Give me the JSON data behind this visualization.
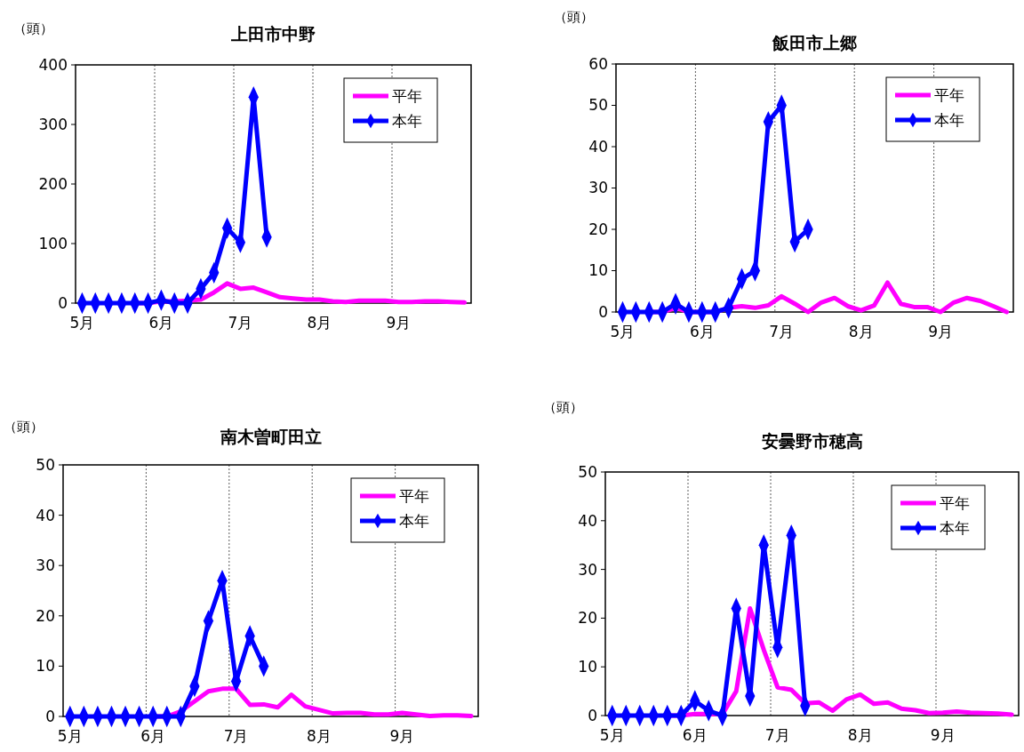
{
  "chart_data": [
    {
      "type": "line",
      "title": "上田市中野",
      "ylabel": "（頭）",
      "categories": [
        "5月",
        null,
        null,
        null,
        null,
        null,
        "6月",
        null,
        null,
        null,
        null,
        null,
        "7月",
        null,
        null,
        null,
        null,
        null,
        "8月",
        null,
        null,
        null,
        null,
        null,
        "9月",
        null,
        null,
        null,
        null,
        null
      ],
      "ylim": [
        0,
        400
      ],
      "yticks": [
        0,
        100,
        200,
        300,
        400
      ],
      "grid": "x",
      "legend": "top right",
      "line_style": "solid",
      "series": [
        {
          "name": "平年",
          "color": "#ff00ff",
          "marker": "none",
          "values": [
            null,
            null,
            null,
            null,
            0,
            0,
            3,
            3,
            4,
            6,
            18,
            33,
            24,
            26,
            18,
            10,
            8,
            6,
            6,
            3,
            2,
            4,
            4,
            4,
            2,
            2,
            3,
            3,
            2,
            1
          ]
        },
        {
          "name": "本年",
          "color": "#0000ff",
          "marker": "diamond",
          "values": [
            0,
            0,
            0,
            0,
            0,
            0,
            5,
            0,
            0,
            24,
            51,
            126,
            102,
            346,
            111,
            null,
            null,
            null,
            null,
            null,
            null,
            null,
            null,
            null,
            null,
            null,
            null,
            null,
            null,
            null
          ]
        }
      ]
    },
    {
      "type": "line",
      "title": "飯田市上郷",
      "ylabel": "（頭）",
      "categories": [
        "5月",
        null,
        null,
        null,
        null,
        null,
        "6月",
        null,
        null,
        null,
        null,
        null,
        "7月",
        null,
        null,
        null,
        null,
        null,
        "8月",
        null,
        null,
        null,
        null,
        null,
        "9月",
        null,
        null,
        null,
        null,
        null
      ],
      "ylim": [
        0,
        60
      ],
      "yticks": [
        0,
        10,
        20,
        30,
        40,
        50,
        60
      ],
      "grid": "x",
      "legend": "top right",
      "line_style": "solid",
      "series": [
        {
          "name": "平年",
          "color": "#ff00ff",
          "marker": "none",
          "values": [
            null,
            null,
            0,
            0,
            1,
            0,
            0,
            0,
            1,
            1.4,
            1,
            1.6,
            3.8,
            2,
            0,
            2.3,
            3.4,
            1.4,
            0.4,
            1.6,
            7.1,
            2,
            1.2,
            1.2,
            0,
            2.3,
            3.4,
            2.7,
            1.4,
            0
          ]
        },
        {
          "name": "本年",
          "color": "#0000ff",
          "marker": "diamond",
          "values": [
            0,
            0,
            0,
            0,
            2,
            0,
            0,
            0,
            1,
            8,
            10,
            46,
            50,
            17,
            20,
            null,
            null,
            null,
            null,
            null,
            null,
            null,
            null,
            null,
            null,
            null,
            null,
            null,
            null,
            null
          ]
        }
      ]
    },
    {
      "type": "line",
      "title": "南木曽町田立",
      "ylabel": "（頭）",
      "categories": [
        "5月",
        null,
        null,
        null,
        null,
        null,
        "6月",
        null,
        null,
        null,
        null,
        null,
        "7月",
        null,
        null,
        null,
        null,
        null,
        "8月",
        null,
        null,
        null,
        null,
        null,
        "9月",
        null,
        null,
        null,
        null,
        null
      ],
      "ylim": [
        0,
        50
      ],
      "yticks": [
        0,
        10,
        20,
        30,
        40,
        50
      ],
      "grid": "x",
      "legend": "top right",
      "line_style": "solid",
      "series": [
        {
          "name": "平年",
          "color": "#ff00ff",
          "marker": "none",
          "values": [
            null,
            null,
            null,
            null,
            null,
            null,
            0,
            0,
            1,
            3,
            5,
            5.5,
            5.5,
            2.3,
            2.4,
            1.8,
            4.3,
            2,
            1.3,
            0.6,
            0.7,
            0.7,
            0.4,
            0.4,
            0.7,
            0.4,
            0.1,
            0.2,
            0.2,
            0.1
          ]
        },
        {
          "name": "本年",
          "color": "#0000ff",
          "marker": "diamond",
          "values": [
            0,
            0,
            0,
            0,
            0,
            0,
            0,
            0,
            0,
            6,
            19,
            27,
            7,
            16,
            10,
            null,
            null,
            null,
            null,
            null,
            null,
            null,
            null,
            null,
            null,
            null,
            null,
            null,
            null,
            null
          ]
        }
      ]
    },
    {
      "type": "line",
      "title": "安曇野市穂高",
      "ylabel": "（頭）",
      "categories": [
        "5月",
        null,
        null,
        null,
        null,
        null,
        "6月",
        null,
        null,
        null,
        null,
        null,
        "7月",
        null,
        null,
        null,
        null,
        null,
        "8月",
        null,
        null,
        null,
        null,
        null,
        "9月",
        null,
        null,
        null,
        null,
        null
      ],
      "ylim": [
        0,
        50
      ],
      "yticks": [
        0,
        10,
        20,
        30,
        40,
        50
      ],
      "grid": "x",
      "legend": "top right",
      "line_style": "solid",
      "series": [
        {
          "name": "平年",
          "color": "#ff00ff",
          "marker": "none",
          "values": [
            null,
            null,
            null,
            null,
            0,
            0,
            0.3,
            0.3,
            0.3,
            5,
            22,
            13.5,
            5.8,
            5.3,
            2.5,
            2.7,
            1,
            3.3,
            4.3,
            2.4,
            2.7,
            1.4,
            1.1,
            0.5,
            0.6,
            0.8,
            0.6,
            0.5,
            0.4,
            0.2
          ]
        },
        {
          "name": "本年",
          "color": "#0000ff",
          "marker": "diamond",
          "values": [
            0,
            0,
            0,
            0,
            0,
            0,
            3,
            1,
            0,
            22,
            4,
            35,
            14,
            37,
            2,
            null,
            null,
            null,
            null,
            null,
            null,
            null,
            null,
            null,
            null,
            null,
            null,
            null,
            null,
            null
          ]
        }
      ]
    }
  ]
}
